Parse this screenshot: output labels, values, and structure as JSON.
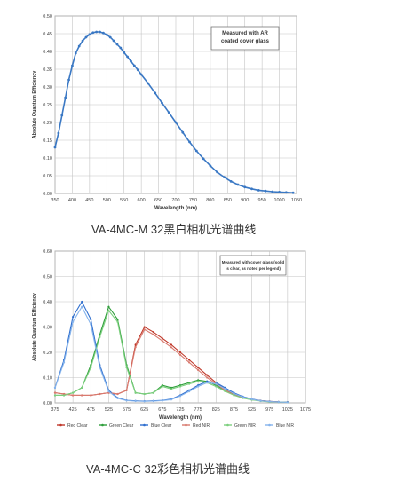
{
  "captions": {
    "chart1": "VA-4MC-M 32黑白相机光谱曲线",
    "chart2": "VA-4MC-C 32彩色相机光谱曲线"
  },
  "chart_data": [
    {
      "type": "line",
      "title": "",
      "xlabel": "Wavelength (nm)",
      "ylabel": "Absolute Quantum Efficiency",
      "xlim": [
        350,
        1050
      ],
      "ylim": [
        0,
        0.5
      ],
      "x_ticks": [
        350,
        400,
        450,
        500,
        550,
        600,
        650,
        700,
        750,
        800,
        850,
        900,
        950,
        1000,
        1050
      ],
      "y_ticks": [
        0,
        0.05,
        0.1,
        0.15,
        0.2,
        0.25,
        0.3,
        0.35,
        0.4,
        0.45,
        0.5
      ],
      "x_tick_labels": [
        "350",
        "400",
        "450",
        "500",
        "550",
        "600",
        "650",
        "700",
        "750",
        "800",
        "850",
        "900",
        "950",
        "1000",
        "1050"
      ],
      "y_tick_labels": [
        "0.00",
        "0.05",
        "0.10",
        "0.15",
        "0.20",
        "0.25",
        "0.30",
        "0.35",
        "0.40",
        "0.45",
        "0.50"
      ],
      "grid": true,
      "annotation": [
        "Measured with AR",
        "coated cover glass"
      ],
      "series": [
        {
          "color": "#3a78c4",
          "x": [
            350,
            360,
            370,
            380,
            390,
            400,
            410,
            420,
            430,
            440,
            450,
            460,
            470,
            480,
            490,
            500,
            510,
            520,
            530,
            540,
            550,
            560,
            570,
            580,
            590,
            600,
            620,
            640,
            660,
            680,
            700,
            720,
            740,
            760,
            780,
            800,
            820,
            840,
            860,
            880,
            900,
            920,
            940,
            960,
            980,
            1000,
            1020,
            1040
          ],
          "values": [
            0.13,
            0.17,
            0.22,
            0.27,
            0.32,
            0.36,
            0.395,
            0.415,
            0.43,
            0.44,
            0.448,
            0.453,
            0.455,
            0.455,
            0.452,
            0.447,
            0.44,
            0.43,
            0.42,
            0.41,
            0.397,
            0.385,
            0.372,
            0.36,
            0.348,
            0.335,
            0.31,
            0.283,
            0.255,
            0.228,
            0.2,
            0.172,
            0.145,
            0.12,
            0.098,
            0.078,
            0.06,
            0.046,
            0.034,
            0.025,
            0.018,
            0.013,
            0.009,
            0.007,
            0.005,
            0.004,
            0.003,
            0.002
          ]
        }
      ]
    },
    {
      "type": "line",
      "title": "",
      "xlabel": "Wavelength (nm)",
      "ylabel": "Absolute Quantum Efficiency",
      "xlim": [
        375,
        1075
      ],
      "ylim": [
        0,
        0.6
      ],
      "x_ticks": [
        375,
        425,
        475,
        525,
        575,
        625,
        675,
        725,
        775,
        825,
        875,
        925,
        975,
        1025,
        1075
      ],
      "y_ticks": [
        0,
        0.1,
        0.2,
        0.3,
        0.4,
        0.5,
        0.6
      ],
      "x_tick_labels": [
        "375",
        "425",
        "475",
        "525",
        "575",
        "625",
        "675",
        "725",
        "775",
        "825",
        "875",
        "925",
        "975",
        "1025",
        "1075"
      ],
      "y_tick_labels": [
        "0.00",
        "0.10",
        "0.20",
        "0.30",
        "0.40",
        "0.50",
        "0.60"
      ],
      "grid": true,
      "annotation": [
        "Measured with cover glass (solid",
        "is clear, as noted per legend)"
      ],
      "legend_position": "bottom",
      "series": [
        {
          "name": "Red Clear",
          "color": "#c0392b",
          "x": [
            375,
            400,
            425,
            450,
            475,
            500,
            525,
            550,
            575,
            600,
            625,
            650,
            675,
            700,
            725,
            750,
            775,
            800,
            825,
            850,
            875,
            900,
            925,
            950,
            975,
            1000,
            1025
          ],
          "values": [
            0.04,
            0.035,
            0.03,
            0.03,
            0.03,
            0.035,
            0.04,
            0.035,
            0.05,
            0.23,
            0.3,
            0.28,
            0.255,
            0.23,
            0.2,
            0.17,
            0.14,
            0.11,
            0.08,
            0.055,
            0.035,
            0.022,
            0.014,
            0.009,
            0.006,
            0.004,
            0.003
          ]
        },
        {
          "name": "Green Clear",
          "color": "#2e9e3a",
          "x": [
            375,
            400,
            425,
            450,
            475,
            500,
            525,
            550,
            575,
            600,
            625,
            650,
            675,
            700,
            725,
            750,
            775,
            800,
            825,
            850,
            875,
            900,
            925,
            950,
            975,
            1000,
            1025
          ],
          "values": [
            0.03,
            0.03,
            0.04,
            0.06,
            0.15,
            0.27,
            0.38,
            0.33,
            0.15,
            0.04,
            0.035,
            0.04,
            0.07,
            0.06,
            0.07,
            0.08,
            0.09,
            0.085,
            0.07,
            0.05,
            0.033,
            0.021,
            0.013,
            0.008,
            0.005,
            0.003,
            0.002
          ]
        },
        {
          "name": "Blue Clear",
          "color": "#2f6fcf",
          "x": [
            375,
            400,
            425,
            450,
            475,
            500,
            525,
            550,
            575,
            600,
            625,
            650,
            675,
            700,
            725,
            750,
            775,
            800,
            825,
            850,
            875,
            900,
            925,
            950,
            975,
            1000,
            1025
          ],
          "values": [
            0.06,
            0.17,
            0.34,
            0.4,
            0.33,
            0.15,
            0.05,
            0.02,
            0.01,
            0.008,
            0.007,
            0.008,
            0.01,
            0.015,
            0.03,
            0.05,
            0.07,
            0.085,
            0.08,
            0.06,
            0.04,
            0.025,
            0.015,
            0.009,
            0.006,
            0.004,
            0.003
          ]
        },
        {
          "name": "Red NIR",
          "color": "#d97a6f",
          "x": [
            375,
            400,
            425,
            450,
            475,
            500,
            525,
            550,
            575,
            600,
            625,
            650,
            675,
            700,
            725,
            750,
            775,
            800,
            825,
            850,
            875,
            900,
            925,
            950,
            975,
            1000,
            1025
          ],
          "values": [
            0.04,
            0.035,
            0.03,
            0.03,
            0.03,
            0.035,
            0.04,
            0.035,
            0.05,
            0.22,
            0.29,
            0.27,
            0.245,
            0.22,
            0.19,
            0.16,
            0.13,
            0.1,
            0.075,
            0.05,
            0.032,
            0.02,
            0.013,
            0.008,
            0.005,
            0.003,
            0.002
          ]
        },
        {
          "name": "Green NIR",
          "color": "#7ccf7e",
          "x": [
            375,
            400,
            425,
            450,
            475,
            500,
            525,
            550,
            575,
            600,
            625,
            650,
            675,
            700,
            725,
            750,
            775,
            800,
            825,
            850,
            875,
            900,
            925,
            950,
            975,
            1000,
            1025
          ],
          "values": [
            0.03,
            0.03,
            0.04,
            0.06,
            0.14,
            0.26,
            0.365,
            0.32,
            0.14,
            0.04,
            0.035,
            0.04,
            0.065,
            0.055,
            0.065,
            0.075,
            0.085,
            0.08,
            0.065,
            0.046,
            0.03,
            0.019,
            0.012,
            0.007,
            0.004,
            0.003,
            0.002
          ]
        },
        {
          "name": "Blue NIR",
          "color": "#86b4ec",
          "x": [
            375,
            400,
            425,
            450,
            475,
            500,
            525,
            550,
            575,
            600,
            625,
            650,
            675,
            700,
            725,
            750,
            775,
            800,
            825,
            850,
            875,
            900,
            925,
            950,
            975,
            1000,
            1025
          ],
          "values": [
            0.06,
            0.16,
            0.32,
            0.38,
            0.31,
            0.14,
            0.045,
            0.018,
            0.009,
            0.007,
            0.006,
            0.007,
            0.009,
            0.013,
            0.027,
            0.045,
            0.065,
            0.08,
            0.075,
            0.056,
            0.037,
            0.023,
            0.014,
            0.008,
            0.005,
            0.003,
            0.002
          ]
        }
      ]
    }
  ]
}
